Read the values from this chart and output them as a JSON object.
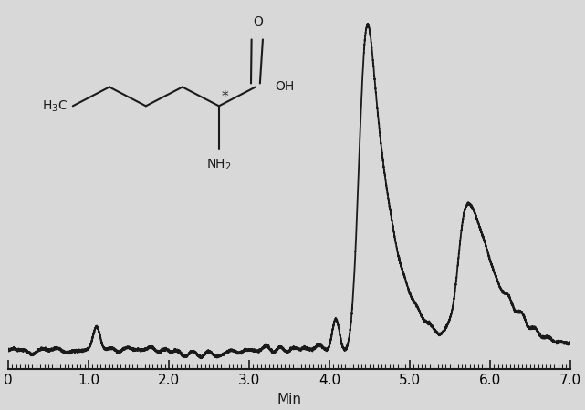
{
  "background_color": "#d8d8d8",
  "line_color": "#1a1a1a",
  "line_width": 1.3,
  "xlim": [
    0,
    7.0
  ],
  "ylim": [
    -0.04,
    1.08
  ],
  "xlabel": "Min",
  "xlabel_fontsize": 11,
  "xticks": [
    0,
    1.0,
    2.0,
    3.0,
    4.0,
    5.0,
    6.0,
    7.0
  ],
  "xtick_labels": [
    "0",
    "1.0",
    "2.0",
    "3.0",
    "4.0",
    "5.0",
    "6.0",
    "7.0"
  ],
  "tick_fontsize": 11,
  "noise_amplitude": 0.003,
  "baseline": 0.015,
  "noise_seed": 17
}
